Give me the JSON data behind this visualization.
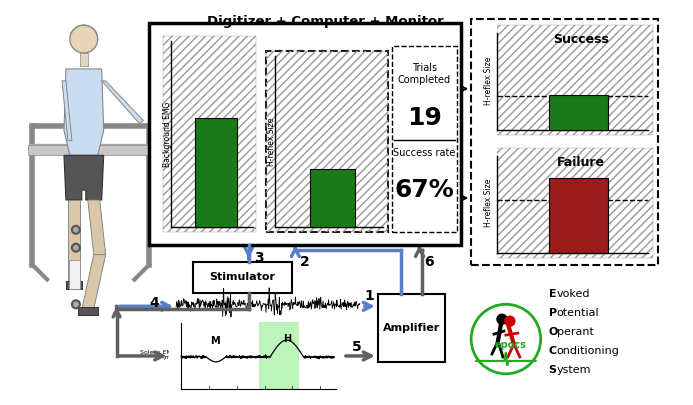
{
  "title": "Digitizer + Computer + Monitor",
  "bg_color": "#ffffff",
  "dark_green": "#1a7a1a",
  "dark_red": "#9b1c1c",
  "amplifier_label": "Amplifier",
  "stimulator_label": "Stimulator",
  "epocs_text": [
    "Evoked",
    "Potential",
    "Operant",
    "Conditioning",
    "System"
  ],
  "epocs_bold": [
    "E",
    "P",
    "O",
    "C",
    "S"
  ],
  "epocs_rest": [
    "voked",
    "otential",
    "perant",
    "onditioning",
    "ystem"
  ],
  "arrow_blue": "#5b7fc4",
  "arrow_gray": "#606060",
  "hatch_gray": "#aaaaaa"
}
